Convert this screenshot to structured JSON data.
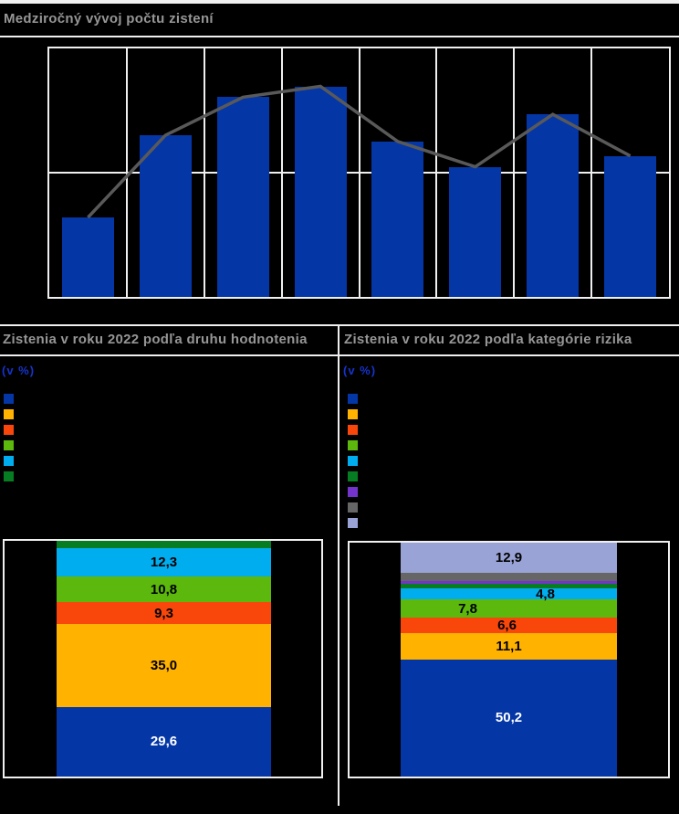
{
  "colors": {
    "background": "#000000",
    "panel_line": "#F0F0F0",
    "title_gray": "#969696",
    "unit_blue": "#1633CC",
    "series_line": "#595959",
    "blue": "#0436A6",
    "amber": "#FFB200",
    "orangered": "#F9470B",
    "lime": "#5CB80C",
    "cyan": "#00AEEF",
    "darkgreen": "#067D22",
    "purple": "#7433CC",
    "gray": "#666666",
    "lavender": "#9AA3D6",
    "label_black": "#000000",
    "label_white": "#FFFFFF"
  },
  "chart_data": [
    {
      "type": "bar",
      "title": "Medziročný vývoj počtu zistení",
      "overlay_line": true,
      "axis_tick_labels_visible": false,
      "note": "axis tick labels are not legible in the source; values are pixel-proportional estimates",
      "values": [
        88,
        179,
        221,
        233,
        172,
        144,
        202,
        156
      ],
      "ylim": [
        0,
        275
      ],
      "n_columns": 8,
      "bar_color": "blue",
      "line_color": "series_line",
      "grid": "vertical column dividers plus one horizontal midline"
    },
    {
      "type": "bar",
      "stacked": true,
      "title": "Zistenia v roku 2022 podľa druhu hodnotenia",
      "unit_label": "(v %)",
      "legend_position": "left",
      "legend_text_visible": false,
      "legend_swatches": [
        "blue",
        "amber",
        "orangered",
        "lime",
        "cyan",
        "darkgreen"
      ],
      "segments_bottom_to_top": [
        {
          "color": "blue",
          "value": 29.6,
          "label": "29,6",
          "label_color": "label_white",
          "label_dx": 0
        },
        {
          "color": "amber",
          "value": 35.0,
          "label": "35,0",
          "label_color": "label_black",
          "label_dx": 0
        },
        {
          "color": "orangered",
          "value": 9.3,
          "label": "9,3",
          "label_color": "label_black",
          "label_dx": 0
        },
        {
          "color": "lime",
          "value": 10.8,
          "label": "10,8",
          "label_color": "label_black",
          "label_dx": 0
        },
        {
          "color": "cyan",
          "value": 12.3,
          "label": "12,3",
          "label_color": "label_black",
          "label_dx": 0
        },
        {
          "color": "darkgreen",
          "value": 3.0,
          "label": "",
          "label_color": "label_black",
          "label_dx": 0
        }
      ]
    },
    {
      "type": "bar",
      "stacked": true,
      "title": "Zistenia v roku 2022 podľa kategórie rizika",
      "unit_label": "(v %)",
      "legend_position": "left",
      "legend_text_visible": false,
      "legend_swatches": [
        "blue",
        "amber",
        "orangered",
        "lime",
        "cyan",
        "darkgreen",
        "purple",
        "gray",
        "lavender"
      ],
      "segments_bottom_to_top": [
        {
          "color": "blue",
          "value": 50.2,
          "label": "50,2",
          "label_color": "label_white",
          "label_dx": 0
        },
        {
          "color": "amber",
          "value": 11.1,
          "label": "11,1",
          "label_color": "label_black",
          "label_dx": 0
        },
        {
          "color": "orangered",
          "value": 6.6,
          "label": "6,6",
          "label_color": "label_black",
          "label_dx": -2
        },
        {
          "color": "lime",
          "value": 7.8,
          "label": "7,8",
          "label_color": "label_black",
          "label_dx": -45
        },
        {
          "color": "cyan",
          "value": 4.8,
          "label": "4,8",
          "label_color": "label_black",
          "label_dx": 40
        },
        {
          "color": "darkgreen",
          "value": 2.0,
          "label": "",
          "label_color": "label_black",
          "label_dx": 0
        },
        {
          "color": "purple",
          "value": 1.1,
          "label": "",
          "label_color": "label_black",
          "label_dx": 0
        },
        {
          "color": "gray",
          "value": 3.5,
          "label": "",
          "label_color": "label_black",
          "label_dx": 0
        },
        {
          "color": "lavender",
          "value": 12.9,
          "label": "12,9",
          "label_color": "label_black",
          "label_dx": 0
        }
      ]
    }
  ]
}
